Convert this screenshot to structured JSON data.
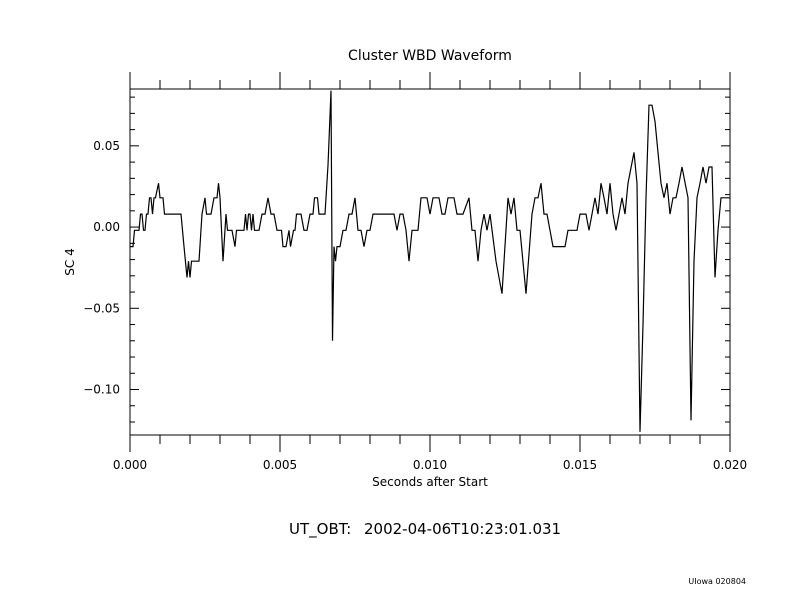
{
  "chart_data": {
    "type": "line",
    "title": "Cluster WBD Waveform",
    "xlabel": "Seconds after Start",
    "ylabel": "SC 4",
    "xlim": [
      0.0,
      0.02
    ],
    "ylim": [
      -0.128,
      0.085
    ],
    "x_ticks": [
      0.0,
      0.005,
      0.01,
      0.015,
      0.02
    ],
    "x_tick_labels": [
      "0.000",
      "0.005",
      "0.010",
      "0.015",
      "0.020"
    ],
    "y_ticks": [
      -0.1,
      -0.05,
      0.0,
      0.05
    ],
    "y_tick_labels": [
      "−0.10",
      "−0.05",
      "0.00",
      "0.05"
    ],
    "grid": false,
    "series": [
      {
        "points": [
          [
            0.0,
            -0.012
          ],
          [
            0.0001,
            -0.012
          ],
          [
            0.00015,
            -0.002
          ],
          [
            0.0003,
            -0.002
          ],
          [
            0.00035,
            0.008
          ],
          [
            0.0004,
            0.008
          ],
          [
            0.00045,
            -0.002
          ],
          [
            0.0005,
            -0.002
          ],
          [
            0.00055,
            0.008
          ],
          [
            0.0006,
            0.008
          ],
          [
            0.00065,
            0.018
          ],
          [
            0.0007,
            0.018
          ],
          [
            0.00075,
            0.008
          ],
          [
            0.0008,
            0.018
          ],
          [
            0.00085,
            0.018
          ],
          [
            0.00095,
            0.027
          ],
          [
            0.001,
            0.018
          ],
          [
            0.0011,
            0.018
          ],
          [
            0.00115,
            0.008
          ],
          [
            0.0017,
            0.008
          ],
          [
            0.0018,
            -0.012
          ],
          [
            0.0019,
            -0.031
          ],
          [
            0.00195,
            -0.021
          ],
          [
            0.002,
            -0.031
          ],
          [
            0.00205,
            -0.021
          ],
          [
            0.0023,
            -0.021
          ],
          [
            0.0024,
            0.008
          ],
          [
            0.0025,
            0.018
          ],
          [
            0.00255,
            0.008
          ],
          [
            0.0027,
            0.008
          ],
          [
            0.0028,
            0.018
          ],
          [
            0.0029,
            0.018
          ],
          [
            0.00295,
            0.027
          ],
          [
            0.003,
            0.018
          ],
          [
            0.0031,
            -0.021
          ],
          [
            0.0032,
            0.008
          ],
          [
            0.00325,
            -0.002
          ],
          [
            0.0034,
            -0.002
          ],
          [
            0.0035,
            -0.012
          ],
          [
            0.00355,
            -0.002
          ],
          [
            0.0038,
            -0.002
          ],
          [
            0.00385,
            0.008
          ],
          [
            0.0039,
            -0.002
          ],
          [
            0.00395,
            0.008
          ],
          [
            0.004,
            0.008
          ],
          [
            0.00405,
            -0.002
          ],
          [
            0.0041,
            0.008
          ],
          [
            0.00415,
            -0.002
          ],
          [
            0.0043,
            -0.002
          ],
          [
            0.0044,
            0.008
          ],
          [
            0.0045,
            0.008
          ],
          [
            0.0046,
            0.018
          ],
          [
            0.0047,
            0.008
          ],
          [
            0.0048,
            0.008
          ],
          [
            0.0049,
            -0.002
          ],
          [
            0.00505,
            -0.002
          ],
          [
            0.0051,
            -0.012
          ],
          [
            0.0052,
            -0.012
          ],
          [
            0.0053,
            -0.002
          ],
          [
            0.00535,
            -0.012
          ],
          [
            0.00545,
            -0.002
          ],
          [
            0.0055,
            -0.002
          ],
          [
            0.00555,
            0.008
          ],
          [
            0.0057,
            0.008
          ],
          [
            0.0058,
            -0.002
          ],
          [
            0.0059,
            -0.002
          ],
          [
            0.006,
            0.008
          ],
          [
            0.0061,
            0.008
          ],
          [
            0.00615,
            0.018
          ],
          [
            0.00625,
            0.018
          ],
          [
            0.0063,
            0.008
          ],
          [
            0.0065,
            0.008
          ],
          [
            0.0066,
            0.038
          ],
          [
            0.0067,
            0.084
          ],
          [
            0.00675,
            -0.07
          ],
          [
            0.0068,
            -0.012
          ],
          [
            0.00685,
            -0.021
          ],
          [
            0.0069,
            -0.012
          ],
          [
            0.007,
            -0.012
          ],
          [
            0.0071,
            -0.002
          ],
          [
            0.0072,
            -0.002
          ],
          [
            0.0073,
            0.008
          ],
          [
            0.0074,
            0.008
          ],
          [
            0.0075,
            0.018
          ],
          [
            0.0076,
            -0.002
          ],
          [
            0.0077,
            -0.002
          ],
          [
            0.0078,
            -0.012
          ],
          [
            0.0079,
            -0.002
          ],
          [
            0.008,
            -0.002
          ],
          [
            0.0081,
            0.008
          ],
          [
            0.0088,
            0.008
          ],
          [
            0.0089,
            -0.002
          ],
          [
            0.009,
            0.008
          ],
          [
            0.0091,
            0.008
          ],
          [
            0.0092,
            -0.002
          ],
          [
            0.0093,
            -0.021
          ],
          [
            0.0094,
            -0.002
          ],
          [
            0.0096,
            -0.002
          ],
          [
            0.0097,
            0.018
          ],
          [
            0.0099,
            0.018
          ],
          [
            0.01,
            0.008
          ],
          [
            0.0101,
            0.018
          ],
          [
            0.0103,
            0.018
          ],
          [
            0.0104,
            0.008
          ],
          [
            0.0105,
            0.008
          ],
          [
            0.0106,
            0.018
          ],
          [
            0.0108,
            0.018
          ],
          [
            0.0109,
            0.008
          ],
          [
            0.0111,
            0.008
          ],
          [
            0.0113,
            0.018
          ],
          [
            0.0114,
            -0.002
          ],
          [
            0.0115,
            -0.002
          ],
          [
            0.0116,
            -0.021
          ],
          [
            0.0117,
            -0.002
          ],
          [
            0.0118,
            0.008
          ],
          [
            0.0119,
            -0.002
          ],
          [
            0.012,
            0.008
          ],
          [
            0.0122,
            -0.021
          ],
          [
            0.0124,
            -0.041
          ],
          [
            0.0126,
            0.018
          ],
          [
            0.0127,
            0.008
          ],
          [
            0.0128,
            0.018
          ],
          [
            0.0129,
            -0.002
          ],
          [
            0.013,
            -0.002
          ],
          [
            0.0132,
            -0.041
          ],
          [
            0.0134,
            0.008
          ],
          [
            0.0135,
            0.018
          ],
          [
            0.0136,
            0.018
          ],
          [
            0.0137,
            0.027
          ],
          [
            0.0138,
            0.008
          ],
          [
            0.0139,
            0.008
          ],
          [
            0.014,
            -0.002
          ],
          [
            0.0141,
            -0.012
          ],
          [
            0.0145,
            -0.012
          ],
          [
            0.0146,
            -0.002
          ],
          [
            0.0149,
            -0.002
          ],
          [
            0.015,
            0.008
          ],
          [
            0.0152,
            0.008
          ],
          [
            0.0153,
            -0.002
          ],
          [
            0.0155,
            0.018
          ],
          [
            0.0156,
            0.008
          ],
          [
            0.0157,
            0.027
          ],
          [
            0.0158,
            0.018
          ],
          [
            0.0159,
            0.008
          ],
          [
            0.016,
            0.027
          ],
          [
            0.0161,
            0.008
          ],
          [
            0.0162,
            -0.002
          ],
          [
            0.0163,
            0.008
          ],
          [
            0.0164,
            0.018
          ],
          [
            0.0165,
            0.008
          ],
          [
            0.0166,
            0.027
          ],
          [
            0.0168,
            0.046
          ],
          [
            0.0169,
            0.027
          ],
          [
            0.017,
            -0.126
          ],
          [
            0.0171,
            -0.06
          ],
          [
            0.0172,
            0.018
          ],
          [
            0.0173,
            0.075
          ],
          [
            0.0174,
            0.075
          ],
          [
            0.0175,
            0.065
          ],
          [
            0.0176,
            0.046
          ],
          [
            0.0177,
            0.027
          ],
          [
            0.0178,
            0.018
          ],
          [
            0.0179,
            0.027
          ],
          [
            0.018,
            0.008
          ],
          [
            0.0181,
            0.018
          ],
          [
            0.0182,
            0.018
          ],
          [
            0.0183,
            0.027
          ],
          [
            0.0184,
            0.037
          ],
          [
            0.0186,
            0.018
          ],
          [
            0.0187,
            -0.119
          ],
          [
            0.0188,
            -0.021
          ],
          [
            0.0189,
            0.018
          ],
          [
            0.019,
            0.027
          ],
          [
            0.0191,
            0.037
          ],
          [
            0.0192,
            0.027
          ],
          [
            0.0193,
            0.037
          ],
          [
            0.0194,
            0.037
          ],
          [
            0.0195,
            -0.031
          ],
          [
            0.0196,
            -0.002
          ],
          [
            0.0197,
            0.018
          ],
          [
            0.02,
            0.018
          ]
        ]
      }
    ]
  },
  "footer": {
    "ut_label": "UT_OBT:",
    "ut_value": "2002-04-06T10:23:01.031",
    "credit": "UIowa 020804"
  }
}
